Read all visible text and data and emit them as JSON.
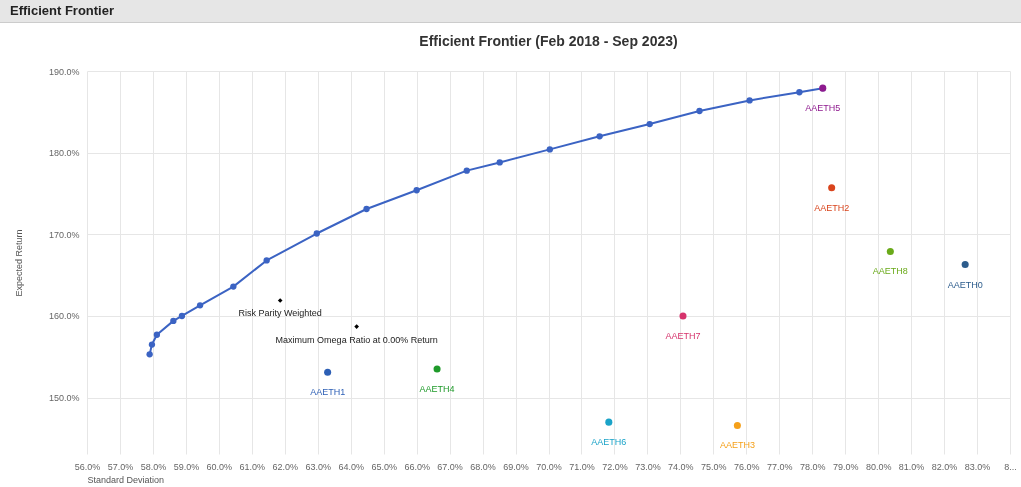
{
  "chart_data": {
    "type": "scatter",
    "title": "Efficient Frontier (Feb 2018 - Sep 2023)",
    "xlabel": "Standard Deviation",
    "ylabel": "Expected Return",
    "annotations": [
      "Efficient Frontier"
    ],
    "xlim": [
      56,
      84
    ],
    "ylim": [
      143.1,
      190
    ],
    "xticks": [
      {
        "value": 56,
        "label": "56.0%"
      },
      {
        "value": 57,
        "label": "57.0%"
      },
      {
        "value": 58,
        "label": "58.0%"
      },
      {
        "value": 59,
        "label": "59.0%"
      },
      {
        "value": 60,
        "label": "60.0%"
      },
      {
        "value": 61,
        "label": "61.0%"
      },
      {
        "value": 62,
        "label": "62.0%"
      },
      {
        "value": 63,
        "label": "63.0%"
      },
      {
        "value": 64,
        "label": "64.0%"
      },
      {
        "value": 65,
        "label": "65.0%"
      },
      {
        "value": 66,
        "label": "66.0%"
      },
      {
        "value": 67,
        "label": "67.0%"
      },
      {
        "value": 68,
        "label": "68.0%"
      },
      {
        "value": 69,
        "label": "69.0%"
      },
      {
        "value": 70,
        "label": "70.0%"
      },
      {
        "value": 71,
        "label": "71.0%"
      },
      {
        "value": 72,
        "label": "72.0%"
      },
      {
        "value": 73,
        "label": "73.0%"
      },
      {
        "value": 74,
        "label": "74.0%"
      },
      {
        "value": 75,
        "label": "75.0%"
      },
      {
        "value": 76,
        "label": "76.0%"
      },
      {
        "value": 77,
        "label": "77.0%"
      },
      {
        "value": 78,
        "label": "78.0%"
      },
      {
        "value": 79,
        "label": "79.0%"
      },
      {
        "value": 80,
        "label": "80.0%"
      },
      {
        "value": 81,
        "label": "81.0%"
      },
      {
        "value": 82,
        "label": "82.0%"
      },
      {
        "value": 83,
        "label": "83.0%"
      },
      {
        "value": 84,
        "label": "8..."
      }
    ],
    "yticks": [
      {
        "value": 150,
        "label": "150.0%"
      },
      {
        "value": 160,
        "label": "160.0%"
      },
      {
        "value": 170,
        "label": "170.0%"
      },
      {
        "value": 180,
        "label": "180.0%"
      },
      {
        "value": 190,
        "label": "190.0%"
      }
    ],
    "grid": true,
    "series": [
      {
        "type": "line",
        "marker": "circle",
        "color": "#3b63c3",
        "x": [
          57.9,
          57.97,
          58.12,
          58.62,
          58.88,
          59.43,
          60.44,
          61.45,
          62.97,
          64.48,
          66.0,
          67.52,
          68.52,
          70.04,
          71.55,
          73.07,
          74.58,
          76.1,
          77.61,
          78.32
        ],
        "values": [
          155.3,
          156.5,
          157.7,
          159.4,
          160.0,
          161.3,
          163.6,
          166.8,
          170.1,
          173.1,
          175.4,
          177.8,
          178.8,
          180.4,
          182.0,
          183.5,
          185.1,
          186.4,
          187.4,
          187.9
        ]
      },
      {
        "name": "AAETH5",
        "color": "#8e1a8e",
        "x": [
          78.32
        ],
        "values": [
          187.9
        ]
      },
      {
        "name": "AAETH2",
        "color": "#d9441c",
        "x": [
          78.59
        ],
        "values": [
          175.7
        ]
      },
      {
        "name": "AAETH8",
        "color": "#6aaa1a",
        "x": [
          80.37
        ],
        "values": [
          167.9
        ]
      },
      {
        "name": "AAETH0",
        "color": "#2c5c8c",
        "x": [
          82.64
        ],
        "values": [
          166.3
        ]
      },
      {
        "name": "AAETH7",
        "color": "#d6336c",
        "x": [
          74.08
        ],
        "values": [
          160.0
        ]
      },
      {
        "name": "AAETH6",
        "color": "#1aa3c8",
        "x": [
          71.83
        ],
        "values": [
          147.0
        ]
      },
      {
        "name": "AAETH3",
        "color": "#f5a01a",
        "x": [
          75.73
        ],
        "values": [
          146.6
        ]
      },
      {
        "name": "AAETH1",
        "color": "#2d5fb5",
        "x": [
          63.3
        ],
        "values": [
          153.1
        ]
      },
      {
        "name": "AAETH4",
        "color": "#1f9a2a",
        "x": [
          66.62
        ],
        "values": [
          153.5
        ]
      },
      {
        "name": "Risk Parity Weighted",
        "color": "#000000",
        "marker": "diamond",
        "x": [
          61.86
        ],
        "values": [
          161.9
        ]
      },
      {
        "name": "Maximum Omega Ratio at 0.00% Return",
        "color": "#000000",
        "marker": "diamond",
        "x": [
          64.18
        ],
        "values": [
          158.7
        ]
      }
    ]
  }
}
